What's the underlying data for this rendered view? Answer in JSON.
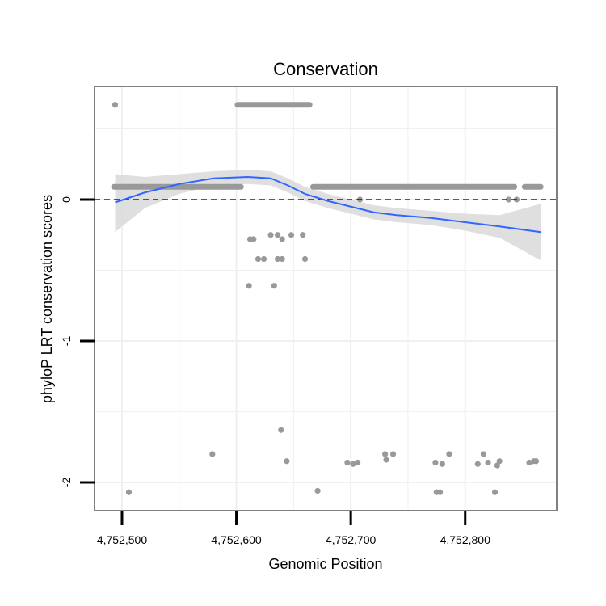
{
  "chart_data": {
    "type": "scatter",
    "title": "Conservation",
    "xlabel": "Genomic Position",
    "ylabel": "phyloP LRT conservation scores",
    "xlim": [
      4752476,
      4752880
    ],
    "ylim": [
      -2.2,
      0.8
    ],
    "x_ticks": [
      {
        "value": 4752500,
        "label": "4,752,500"
      },
      {
        "value": 4752600,
        "label": "4,752,600"
      },
      {
        "value": 4752700,
        "label": "4,752,700"
      },
      {
        "value": 4752800,
        "label": "4,752,800"
      }
    ],
    "y_ticks": [
      {
        "value": 0,
        "label": "0"
      },
      {
        "value": -1,
        "label": "-1"
      },
      {
        "value": -2,
        "label": "-2"
      }
    ],
    "grid": true,
    "reference_line": {
      "y": 0,
      "style": "dashed",
      "color": "#000000"
    },
    "colors": {
      "points": "#999999",
      "smooth": "#3366ff",
      "ribbon": "#d9d9d9",
      "panel_border": "#808080",
      "grid": "#f0f0f0"
    },
    "series": [
      {
        "name": "observed",
        "type": "scatter",
        "dense_runs": [
          {
            "x_start": 4752493,
            "x_end": 4752604,
            "y": 0.09
          },
          {
            "x_start": 4752601,
            "x_end": 4752664,
            "y": 0.67
          },
          {
            "x_start": 4752667,
            "x_end": 4752843,
            "y": 0.09
          },
          {
            "x_start": 4752852,
            "x_end": 4752866,
            "y": 0.09
          }
        ],
        "points": [
          {
            "x": 4752494,
            "y": 0.67
          },
          {
            "x": 4752708,
            "y": 0.0
          },
          {
            "x": 4752838,
            "y": 0.0
          },
          {
            "x": 4752845,
            "y": 0.0
          },
          {
            "x": 4752612,
            "y": -0.28
          },
          {
            "x": 4752615,
            "y": -0.28
          },
          {
            "x": 4752630,
            "y": -0.25
          },
          {
            "x": 4752636,
            "y": -0.25
          },
          {
            "x": 4752640,
            "y": -0.28
          },
          {
            "x": 4752648,
            "y": -0.25
          },
          {
            "x": 4752658,
            "y": -0.25
          },
          {
            "x": 4752619,
            "y": -0.42
          },
          {
            "x": 4752624,
            "y": -0.42
          },
          {
            "x": 4752636,
            "y": -0.42
          },
          {
            "x": 4752640,
            "y": -0.42
          },
          {
            "x": 4752660,
            "y": -0.42
          },
          {
            "x": 4752611,
            "y": -0.61
          },
          {
            "x": 4752633,
            "y": -0.61
          },
          {
            "x": 4752639,
            "y": -1.63
          },
          {
            "x": 4752644,
            "y": -1.85
          },
          {
            "x": 4752579,
            "y": -1.8
          },
          {
            "x": 4752506,
            "y": -2.07
          },
          {
            "x": 4752671,
            "y": -2.06
          },
          {
            "x": 4752697,
            "y": -1.86
          },
          {
            "x": 4752702,
            "y": -1.87
          },
          {
            "x": 4752706,
            "y": -1.86
          },
          {
            "x": 4752730,
            "y": -1.8
          },
          {
            "x": 4752731,
            "y": -1.84
          },
          {
            "x": 4752737,
            "y": -1.8
          },
          {
            "x": 4752774,
            "y": -1.86
          },
          {
            "x": 4752775,
            "y": -2.07
          },
          {
            "x": 4752778,
            "y": -2.07
          },
          {
            "x": 4752780,
            "y": -1.87
          },
          {
            "x": 4752786,
            "y": -1.8
          },
          {
            "x": 4752811,
            "y": -1.87
          },
          {
            "x": 4752816,
            "y": -1.8
          },
          {
            "x": 4752820,
            "y": -1.86
          },
          {
            "x": 4752826,
            "y": -2.07
          },
          {
            "x": 4752828,
            "y": -1.88
          },
          {
            "x": 4752830,
            "y": -1.85
          },
          {
            "x": 4752856,
            "y": -1.86
          },
          {
            "x": 4752860,
            "y": -1.85
          },
          {
            "x": 4752862,
            "y": -1.85
          }
        ]
      },
      {
        "name": "loess",
        "type": "line",
        "x": [
          4752494,
          4752520,
          4752550,
          4752580,
          4752610,
          4752630,
          4752645,
          4752660,
          4752680,
          4752700,
          4752720,
          4752740,
          4752770,
          4752800,
          4752830,
          4752866
        ],
        "y": [
          -0.02,
          0.05,
          0.11,
          0.15,
          0.16,
          0.15,
          0.1,
          0.04,
          -0.01,
          -0.05,
          -0.09,
          -0.11,
          -0.13,
          -0.16,
          -0.19,
          -0.23
        ],
        "ci_lower": [
          -0.23,
          -0.06,
          0.04,
          0.1,
          0.11,
          0.1,
          0.05,
          -0.01,
          -0.06,
          -0.1,
          -0.14,
          -0.16,
          -0.18,
          -0.22,
          -0.27,
          -0.43
        ],
        "ci_upper": [
          0.18,
          0.16,
          0.18,
          0.2,
          0.21,
          0.2,
          0.15,
          0.09,
          0.04,
          0.0,
          -0.04,
          -0.06,
          -0.08,
          -0.1,
          -0.11,
          -0.03
        ]
      }
    ]
  }
}
